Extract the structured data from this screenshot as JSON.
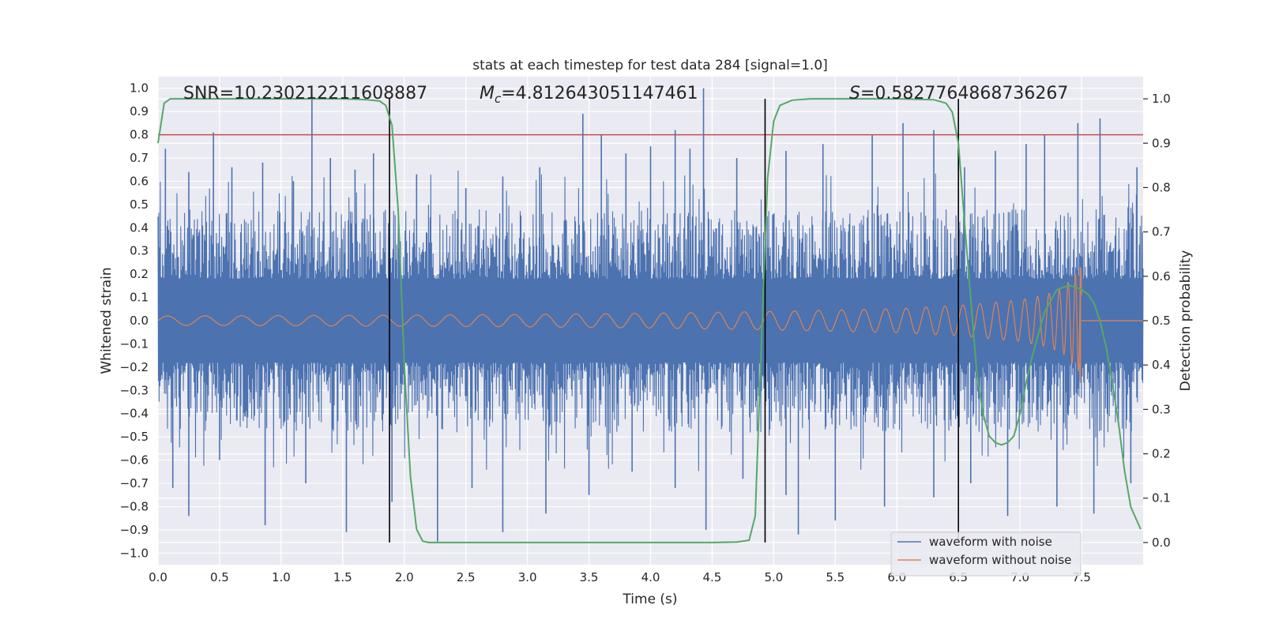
{
  "chart_data": {
    "type": "line",
    "title": "stats at each timestep for test data 284 [signal=1.0]",
    "xlabel": "Time (s)",
    "ylabel": "Whitened strain",
    "y2label": "Detection probability",
    "xlim": [
      0.0,
      8.0
    ],
    "ylim": [
      -1.05,
      1.05
    ],
    "y2lim": [
      -0.05,
      1.05
    ],
    "x_ticks": [
      "0.0",
      "0.5",
      "1.0",
      "1.5",
      "2.0",
      "2.5",
      "3.0",
      "3.5",
      "4.0",
      "4.5",
      "5.0",
      "5.5",
      "6.0",
      "6.5",
      "7.0",
      "7.5"
    ],
    "y_ticks": [
      "1.0",
      "0.9",
      "0.8",
      "0.7",
      "0.6",
      "0.5",
      "0.4",
      "0.3",
      "0.2",
      "0.1",
      "0.0",
      "−0.1",
      "−0.2",
      "−0.3",
      "−0.4",
      "−0.5",
      "−0.6",
      "−0.7",
      "−0.8",
      "−0.9",
      "−1.0"
    ],
    "y2_ticks": [
      "1.0",
      "0.9",
      "0.8",
      "0.7",
      "0.6",
      "0.5",
      "0.4",
      "0.3",
      "0.2",
      "0.1",
      "0.0"
    ],
    "grid": true,
    "legend_position": "lower-right",
    "annotations": {
      "snr_text": "SNR=10.230212211608887",
      "mc_symbol": "M",
      "mc_subscript": "c",
      "mc_value": "=4.812643051147461",
      "s_symbol": "S",
      "s_value": "=0.5827764868736267"
    },
    "threshold": {
      "y": 0.8,
      "color": "#c44e52"
    },
    "vertical_lines": [
      1.88,
      4.93,
      6.5
    ],
    "series": [
      {
        "name": "waveform with noise",
        "color": "#4c72b0",
        "axis": "left",
        "t_end": 8.0,
        "spikes": [
          [
            0.06,
            0.74
          ],
          [
            0.25,
            0.64
          ],
          [
            0.45,
            0.81
          ],
          [
            0.6,
            0.66
          ],
          [
            0.85,
            0.68
          ],
          [
            1.1,
            0.6
          ],
          [
            1.25,
            0.97
          ],
          [
            1.4,
            0.7
          ],
          [
            1.6,
            0.65
          ],
          [
            1.75,
            0.72
          ],
          [
            2.1,
            0.63
          ],
          [
            2.5,
            0.57
          ],
          [
            2.8,
            0.62
          ],
          [
            3.1,
            0.66
          ],
          [
            3.45,
            0.89
          ],
          [
            3.6,
            0.8
          ],
          [
            3.8,
            0.72
          ],
          [
            4.0,
            0.75
          ],
          [
            4.2,
            0.82
          ],
          [
            4.32,
            0.74
          ],
          [
            4.43,
            1.0
          ],
          [
            4.7,
            0.7
          ],
          [
            5.1,
            0.73
          ],
          [
            5.4,
            0.76
          ],
          [
            5.8,
            0.8
          ],
          [
            6.05,
            0.85
          ],
          [
            6.3,
            0.82
          ],
          [
            6.55,
            0.66
          ],
          [
            6.8,
            0.73
          ],
          [
            7.05,
            0.76
          ],
          [
            7.2,
            0.8
          ],
          [
            7.47,
            0.85
          ],
          [
            7.65,
            0.87
          ],
          [
            7.95,
            0.66
          ],
          [
            0.12,
            -0.72
          ],
          [
            0.25,
            -0.84
          ],
          [
            0.5,
            -0.6
          ],
          [
            0.87,
            -0.88
          ],
          [
            1.2,
            -0.7
          ],
          [
            1.53,
            -0.91
          ],
          [
            1.9,
            -0.78
          ],
          [
            2.27,
            -0.95
          ],
          [
            2.55,
            -0.72
          ],
          [
            2.8,
            -0.91
          ],
          [
            3.15,
            -0.83
          ],
          [
            3.5,
            -0.75
          ],
          [
            3.85,
            -0.65
          ],
          [
            4.2,
            -0.72
          ],
          [
            4.45,
            -0.9
          ],
          [
            4.75,
            -0.68
          ],
          [
            5.1,
            -0.75
          ],
          [
            5.2,
            -0.92
          ],
          [
            5.5,
            -0.86
          ],
          [
            5.9,
            -0.8
          ],
          [
            6.3,
            -0.76
          ],
          [
            6.6,
            -0.7
          ],
          [
            6.9,
            -0.84
          ],
          [
            7.3,
            -0.8
          ],
          [
            7.6,
            -0.83
          ],
          [
            7.9,
            -0.7
          ]
        ]
      },
      {
        "name": "waveform without noise",
        "color": "#dd8452",
        "axis": "left",
        "t_end": 7.5,
        "amplitude_points": [
          [
            0.0,
            0.02
          ],
          [
            1.0,
            0.022
          ],
          [
            2.0,
            0.024
          ],
          [
            3.0,
            0.027
          ],
          [
            4.0,
            0.032
          ],
          [
            5.0,
            0.04
          ],
          [
            6.0,
            0.052
          ],
          [
            6.5,
            0.065
          ],
          [
            7.0,
            0.09
          ],
          [
            7.2,
            0.11
          ],
          [
            7.35,
            0.14
          ],
          [
            7.45,
            0.2
          ],
          [
            7.49,
            0.23
          ]
        ],
        "post_merger": [
          [
            7.5,
            0.0
          ],
          [
            8.0,
            0.0
          ]
        ]
      },
      {
        "name": "detection probability",
        "color": "#55a868",
        "axis": "right",
        "x": [
          0.0,
          0.05,
          0.1,
          0.2,
          0.4,
          0.8,
          1.2,
          1.5,
          1.7,
          1.8,
          1.85,
          1.9,
          1.95,
          2.0,
          2.05,
          2.1,
          2.15,
          2.2,
          2.3,
          2.6,
          3.0,
          3.5,
          4.0,
          4.5,
          4.7,
          4.8,
          4.85,
          4.9,
          4.95,
          5.0,
          5.05,
          5.15,
          5.3,
          5.6,
          6.0,
          6.3,
          6.4,
          6.45,
          6.5,
          6.55,
          6.6,
          6.65,
          6.7,
          6.75,
          6.8,
          6.85,
          6.9,
          6.95,
          7.0,
          7.05,
          7.1,
          7.2,
          7.3,
          7.4,
          7.45,
          7.5,
          7.55,
          7.6,
          7.65,
          7.7,
          7.75,
          7.8,
          7.85,
          7.9,
          7.98
        ],
        "y": [
          0.9,
          0.99,
          1.0,
          1.0,
          1.0,
          1.0,
          1.0,
          1.0,
          0.998,
          0.995,
          0.985,
          0.94,
          0.75,
          0.4,
          0.15,
          0.03,
          0.003,
          0.0,
          0.0,
          0.0,
          0.0,
          0.0,
          0.0,
          0.0,
          0.001,
          0.005,
          0.06,
          0.45,
          0.82,
          0.95,
          0.985,
          0.997,
          1.0,
          1.0,
          1.0,
          0.998,
          0.99,
          0.97,
          0.9,
          0.72,
          0.55,
          0.38,
          0.29,
          0.24,
          0.225,
          0.22,
          0.225,
          0.24,
          0.29,
          0.36,
          0.42,
          0.52,
          0.57,
          0.58,
          0.575,
          0.57,
          0.56,
          0.54,
          0.5,
          0.44,
          0.36,
          0.27,
          0.16,
          0.08,
          0.03
        ]
      }
    ]
  },
  "legend": {
    "items": [
      {
        "label": "waveform with noise",
        "color": "#4c72b0"
      },
      {
        "label": "waveform without noise",
        "color": "#dd8452"
      }
    ]
  }
}
